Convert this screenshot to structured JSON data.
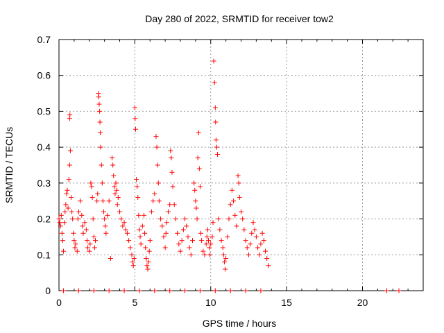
{
  "chart_data": {
    "type": "scatter",
    "title": "Day 280 of 2022, SRMTID for receiver tow2",
    "xlabel": "GPS time / hours",
    "ylabel": "SRMTID / TECUs",
    "xlim": [
      0,
      24
    ],
    "ylim": [
      0,
      0.7
    ],
    "xticks": [
      0,
      5,
      10,
      15,
      20
    ],
    "yticks": [
      0,
      0.1,
      0.2,
      0.3,
      0.4,
      0.5,
      0.6,
      0.7
    ],
    "xtick_labels": [
      "0",
      "5",
      "10",
      "15",
      "20"
    ],
    "ytick_labels": [
      "0",
      "0.1",
      "0.2",
      "0.3",
      "0.4",
      "0.5",
      "0.6",
      "0.7"
    ],
    "grid": true,
    "marker": "+",
    "series": [
      {
        "name": "SRMTID",
        "color": "#ff0000",
        "points": [
          [
            0.0,
            0.2
          ],
          [
            0.05,
            0.19
          ],
          [
            0.1,
            0.18
          ],
          [
            0.15,
            0.21
          ],
          [
            0.2,
            0.16
          ],
          [
            0.25,
            0.14
          ],
          [
            0.3,
            0.11
          ],
          [
            0.35,
            0.19
          ],
          [
            0.4,
            0.22
          ],
          [
            0.45,
            0.24
          ],
          [
            0.5,
            0.27
          ],
          [
            0.55,
            0.28
          ],
          [
            0.6,
            0.23
          ],
          [
            0.65,
            0.31
          ],
          [
            0.7,
            0.35
          ],
          [
            0.7,
            0.48
          ],
          [
            0.72,
            0.49
          ],
          [
            0.75,
            0.39
          ],
          [
            0.8,
            0.26
          ],
          [
            0.85,
            0.22
          ],
          [
            0.9,
            0.2
          ],
          [
            0.95,
            0.16
          ],
          [
            1.0,
            0.14
          ],
          [
            1.05,
            0.12
          ],
          [
            1.1,
            0.13
          ],
          [
            1.2,
            0.11
          ],
          [
            1.25,
            0.2
          ],
          [
            1.3,
            0.22
          ],
          [
            1.4,
            0.25
          ],
          [
            1.5,
            0.21
          ],
          [
            1.55,
            0.18
          ],
          [
            1.6,
            0.16
          ],
          [
            1.7,
            0.19
          ],
          [
            1.8,
            0.17
          ],
          [
            1.85,
            0.14
          ],
          [
            1.9,
            0.12
          ],
          [
            2.0,
            0.11
          ],
          [
            2.05,
            0.13
          ],
          [
            2.1,
            0.3
          ],
          [
            2.15,
            0.29
          ],
          [
            2.2,
            0.26
          ],
          [
            2.25,
            0.2
          ],
          [
            2.3,
            0.15
          ],
          [
            2.35,
            0.12
          ],
          [
            2.4,
            0.14
          ],
          [
            2.5,
            0.25
          ],
          [
            2.55,
            0.27
          ],
          [
            2.6,
            0.55
          ],
          [
            2.62,
            0.54
          ],
          [
            2.65,
            0.52
          ],
          [
            2.68,
            0.5
          ],
          [
            2.7,
            0.47
          ],
          [
            2.72,
            0.44
          ],
          [
            2.75,
            0.4
          ],
          [
            2.8,
            0.35
          ],
          [
            2.85,
            0.3
          ],
          [
            2.9,
            0.25
          ],
          [
            2.95,
            0.22
          ],
          [
            3.0,
            0.2
          ],
          [
            3.05,
            0.18
          ],
          [
            3.1,
            0.16
          ],
          [
            3.2,
            0.21
          ],
          [
            3.3,
            0.25
          ],
          [
            3.4,
            0.09
          ],
          [
            3.5,
            0.37
          ],
          [
            3.55,
            0.35
          ],
          [
            3.6,
            0.32
          ],
          [
            3.65,
            0.29
          ],
          [
            3.7,
            0.27
          ],
          [
            3.75,
            0.3
          ],
          [
            3.8,
            0.28
          ],
          [
            3.85,
            0.24
          ],
          [
            3.9,
            0.26
          ],
          [
            4.0,
            0.22
          ],
          [
            4.1,
            0.2
          ],
          [
            4.2,
            0.18
          ],
          [
            4.3,
            0.19
          ],
          [
            4.4,
            0.17
          ],
          [
            4.5,
            0.16
          ],
          [
            4.6,
            0.14
          ],
          [
            4.7,
            0.12
          ],
          [
            4.8,
            0.1
          ],
          [
            4.85,
            0.08
          ],
          [
            4.9,
            0.07
          ],
          [
            4.95,
            0.09
          ],
          [
            5.0,
            0.51
          ],
          [
            5.02,
            0.48
          ],
          [
            5.05,
            0.45
          ],
          [
            5.1,
            0.31
          ],
          [
            5.15,
            0.29
          ],
          [
            5.2,
            0.26
          ],
          [
            5.25,
            0.21
          ],
          [
            5.3,
            0.17
          ],
          [
            5.35,
            0.15
          ],
          [
            5.4,
            0.13
          ],
          [
            5.5,
            0.18
          ],
          [
            5.6,
            0.21
          ],
          [
            5.65,
            0.16
          ],
          [
            5.7,
            0.12
          ],
          [
            5.75,
            0.09
          ],
          [
            5.8,
            0.07
          ],
          [
            5.85,
            0.06
          ],
          [
            5.9,
            0.08
          ],
          [
            5.95,
            0.11
          ],
          [
            6.0,
            0.14
          ],
          [
            6.1,
            0.22
          ],
          [
            6.2,
            0.25
          ],
          [
            6.3,
            0.27
          ],
          [
            6.4,
            0.43
          ],
          [
            6.45,
            0.4
          ],
          [
            6.5,
            0.35
          ],
          [
            6.55,
            0.3
          ],
          [
            6.6,
            0.25
          ],
          [
            6.7,
            0.2
          ],
          [
            6.8,
            0.18
          ],
          [
            6.9,
            0.15
          ],
          [
            7.0,
            0.12
          ],
          [
            7.05,
            0.16
          ],
          [
            7.1,
            0.19
          ],
          [
            7.2,
            0.22
          ],
          [
            7.3,
            0.24
          ],
          [
            7.35,
            0.39
          ],
          [
            7.4,
            0.37
          ],
          [
            7.45,
            0.33
          ],
          [
            7.5,
            0.29
          ],
          [
            7.6,
            0.24
          ],
          [
            7.7,
            0.2
          ],
          [
            7.8,
            0.16
          ],
          [
            7.9,
            0.13
          ],
          [
            8.0,
            0.11
          ],
          [
            8.1,
            0.14
          ],
          [
            8.2,
            0.17
          ],
          [
            8.3,
            0.2
          ],
          [
            8.4,
            0.18
          ],
          [
            8.5,
            0.15
          ],
          [
            8.6,
            0.12
          ],
          [
            8.7,
            0.1
          ],
          [
            8.8,
            0.14
          ],
          [
            8.9,
            0.3
          ],
          [
            8.95,
            0.28
          ],
          [
            9.0,
            0.25
          ],
          [
            9.05,
            0.23
          ],
          [
            9.1,
            0.2
          ],
          [
            9.15,
            0.37
          ],
          [
            9.2,
            0.44
          ],
          [
            9.25,
            0.34
          ],
          [
            9.3,
            0.29
          ],
          [
            9.35,
            0.16
          ],
          [
            9.4,
            0.14
          ],
          [
            9.5,
            0.11
          ],
          [
            9.6,
            0.1
          ],
          [
            9.7,
            0.13
          ],
          [
            9.75,
            0.15
          ],
          [
            9.8,
            0.17
          ],
          [
            9.85,
            0.14
          ],
          [
            9.9,
            0.12
          ],
          [
            9.95,
            0.1
          ],
          [
            10.0,
            0.13
          ],
          [
            10.1,
            0.15
          ],
          [
            10.15,
            0.19
          ],
          [
            10.2,
            0.64
          ],
          [
            10.25,
            0.58
          ],
          [
            10.3,
            0.51
          ],
          [
            10.32,
            0.47
          ],
          [
            10.35,
            0.42
          ],
          [
            10.4,
            0.4
          ],
          [
            10.45,
            0.38
          ],
          [
            10.5,
            0.2
          ],
          [
            10.6,
            0.17
          ],
          [
            10.7,
            0.14
          ],
          [
            10.8,
            0.12
          ],
          [
            10.85,
            0.1
          ],
          [
            10.9,
            0.08
          ],
          [
            10.95,
            0.06
          ],
          [
            11.0,
            0.09
          ],
          [
            11.1,
            0.15
          ],
          [
            11.2,
            0.2
          ],
          [
            11.3,
            0.24
          ],
          [
            11.4,
            0.28
          ],
          [
            11.5,
            0.25
          ],
          [
            11.6,
            0.21
          ],
          [
            11.7,
            0.18
          ],
          [
            11.8,
            0.32
          ],
          [
            11.85,
            0.3
          ],
          [
            11.9,
            0.26
          ],
          [
            12.0,
            0.22
          ],
          [
            12.1,
            0.2
          ],
          [
            12.2,
            0.17
          ],
          [
            12.3,
            0.14
          ],
          [
            12.4,
            0.12
          ],
          [
            12.5,
            0.1
          ],
          [
            12.6,
            0.13
          ],
          [
            12.7,
            0.16
          ],
          [
            12.8,
            0.19
          ],
          [
            12.9,
            0.17
          ],
          [
            13.0,
            0.15
          ],
          [
            13.1,
            0.12
          ],
          [
            13.2,
            0.1
          ],
          [
            13.3,
            0.13
          ],
          [
            13.4,
            0.16
          ],
          [
            13.5,
            0.14
          ],
          [
            13.6,
            0.11
          ],
          [
            13.7,
            0.09
          ],
          [
            13.8,
            0.07
          ],
          [
            0.3,
            0.0
          ],
          [
            1.3,
            0.0
          ],
          [
            2.3,
            0.0
          ],
          [
            3.3,
            0.0
          ],
          [
            4.3,
            0.0
          ],
          [
            5.3,
            0.0
          ],
          [
            6.3,
            0.0
          ],
          [
            7.3,
            0.0
          ],
          [
            8.3,
            0.0
          ],
          [
            9.3,
            0.0
          ],
          [
            10.3,
            0.0
          ],
          [
            11.3,
            0.0
          ],
          [
            12.3,
            0.0
          ],
          [
            13.3,
            0.0
          ],
          [
            21.6,
            0.0
          ],
          [
            22.4,
            0.0
          ]
        ]
      }
    ]
  }
}
